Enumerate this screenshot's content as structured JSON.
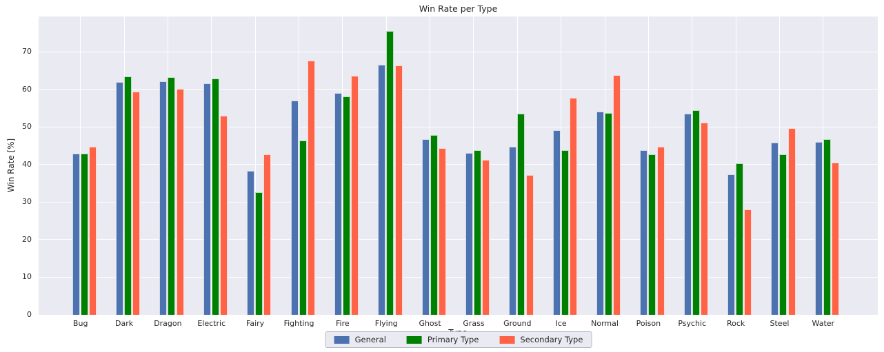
{
  "figure": {
    "background": "#ffffff",
    "plot_background": "#eaeaf2",
    "grid_color": "#ffffff",
    "text_color": "#262626"
  },
  "chart_data": {
    "type": "bar",
    "title": "Win Rate per Type",
    "xlabel": "Type",
    "ylabel": "Win Rate [%]",
    "ylim": [
      0,
      79.4
    ],
    "yticks": [
      0,
      10,
      20,
      30,
      40,
      50,
      60,
      70
    ],
    "grid": true,
    "legend_position": "bottom-center",
    "categories": [
      "Bug",
      "Dark",
      "Dragon",
      "Electric",
      "Fairy",
      "Fighting",
      "Fire",
      "Flying",
      "Ghost",
      "Grass",
      "Ground",
      "Ice",
      "Normal",
      "Poison",
      "Psychic",
      "Rock",
      "Steel",
      "Water"
    ],
    "series": [
      {
        "name": "General",
        "color": "#4c72b0",
        "values": [
          43.0,
          61.9,
          62.2,
          61.6,
          38.3,
          57.0,
          59.0,
          66.5,
          46.7,
          43.1,
          44.8,
          49.1,
          54.1,
          43.8,
          53.5,
          37.4,
          45.9,
          46.0
        ]
      },
      {
        "name": "Primary Type",
        "color": "#008000",
        "values": [
          43.0,
          63.5,
          63.3,
          62.9,
          32.7,
          46.4,
          58.1,
          75.6,
          47.9,
          43.9,
          53.6,
          43.8,
          53.7,
          42.7,
          54.4,
          40.4,
          42.8,
          46.8
        ]
      },
      {
        "name": "Secondary Type",
        "color": "#ff6347",
        "values": [
          44.7,
          59.4,
          60.1,
          53.0,
          42.7,
          67.6,
          63.6,
          66.3,
          44.3,
          41.2,
          37.3,
          57.8,
          63.9,
          44.8,
          51.2,
          28.0,
          49.7,
          40.6
        ]
      }
    ]
  }
}
